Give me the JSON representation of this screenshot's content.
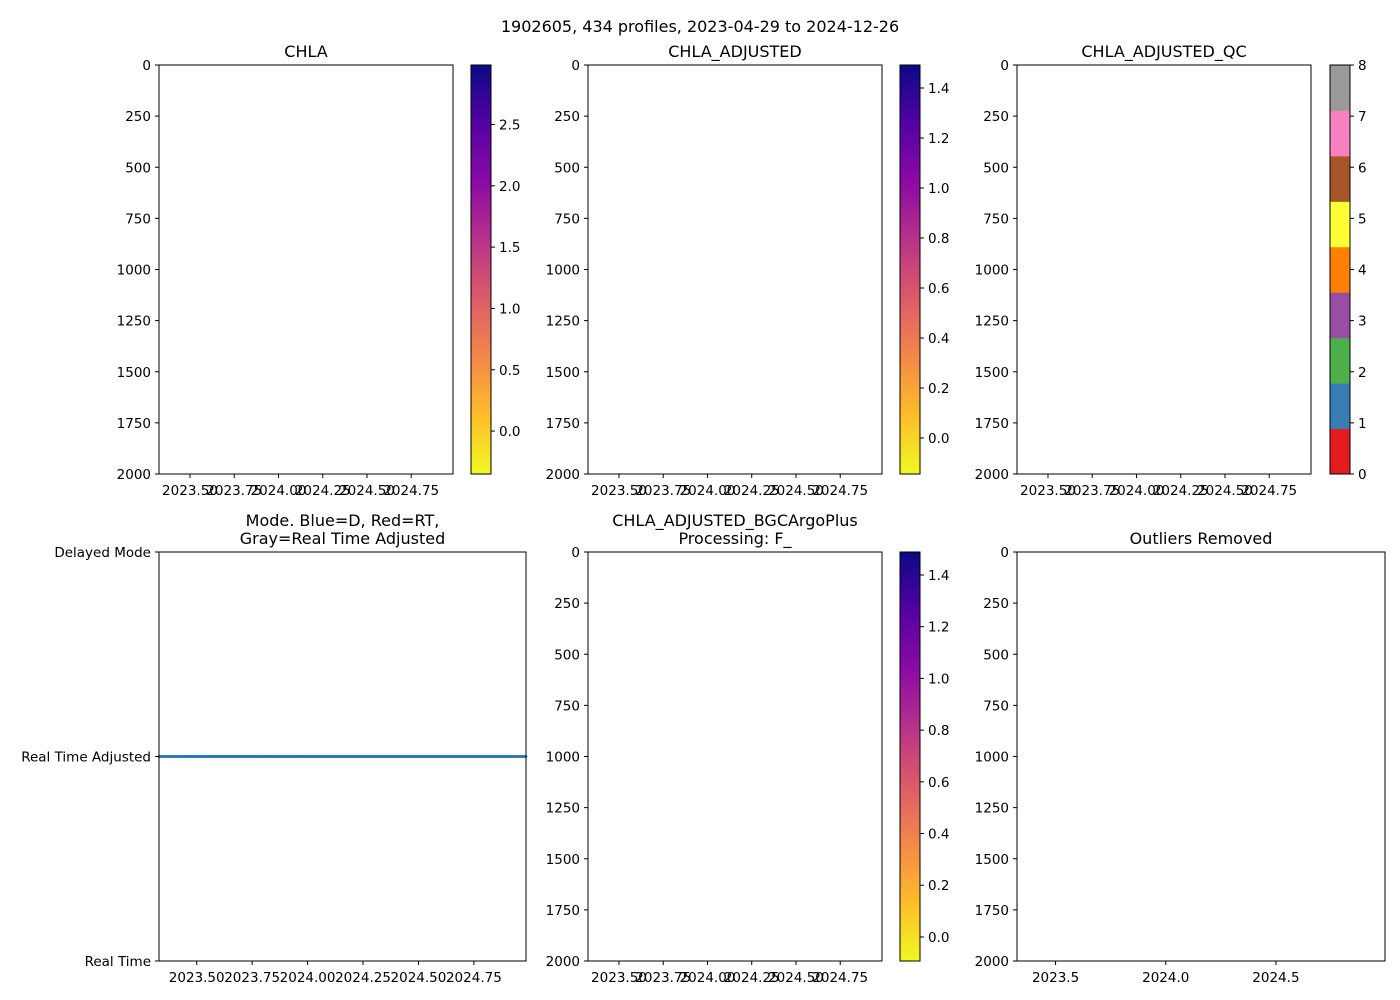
{
  "figure": {
    "suptitle": "1902605, 434 profiles, 2023-04-29 to 2024-12-26"
  },
  "chart_data": [
    {
      "id": "chla",
      "type": "heatmap",
      "title": [
        "CHLA"
      ],
      "xlim": [
        2023.325,
        2024.986
      ],
      "ylim": [
        2000,
        0
      ],
      "xticks": [
        2023.5,
        2023.75,
        2024.0,
        2024.25,
        2024.5,
        2024.75
      ],
      "xtick_labels": [
        "2023.50",
        "2023.75",
        "2024.00",
        "2024.25",
        "2024.50",
        "2024.75"
      ],
      "yticks": [
        0,
        250,
        500,
        750,
        1000,
        1250,
        1500,
        1750,
        2000
      ],
      "yticklabels": [
        "0",
        "250",
        "500",
        "750",
        "1000",
        "1250",
        "1500",
        "1750",
        "2000"
      ],
      "colorbar": {
        "cmap": "plasma_r",
        "range": [
          -0.35,
          2.985
        ],
        "ticks": [
          0.0,
          0.5,
          1.0,
          1.5,
          2.0,
          2.5
        ],
        "labels": [
          "0.0",
          "0.5",
          "1.0",
          "1.5",
          "2.0",
          "2.5"
        ]
      },
      "values": []
    },
    {
      "id": "chla_adjusted",
      "type": "heatmap",
      "title": [
        "CHLA_ADJUSTED"
      ],
      "xlim": [
        2023.325,
        2024.986
      ],
      "ylim": [
        2000,
        0
      ],
      "xticks": [
        2023.5,
        2023.75,
        2024.0,
        2024.25,
        2024.5,
        2024.75
      ],
      "xtick_labels": [
        "2023.50",
        "2023.75",
        "2024.00",
        "2024.25",
        "2024.50",
        "2024.75"
      ],
      "yticks": [
        0,
        250,
        500,
        750,
        1000,
        1250,
        1500,
        1750,
        2000
      ],
      "yticklabels": [
        "0",
        "250",
        "500",
        "750",
        "1000",
        "1250",
        "1500",
        "1750",
        "2000"
      ],
      "colorbar": {
        "cmap": "plasma_r",
        "range": [
          -0.144,
          1.492
        ],
        "ticks": [
          0.0,
          0.2,
          0.4,
          0.6,
          0.8,
          1.0,
          1.2,
          1.4
        ],
        "labels": [
          "0.0",
          "0.2",
          "0.4",
          "0.6",
          "0.8",
          "1.0",
          "1.2",
          "1.4"
        ]
      },
      "values": []
    },
    {
      "id": "chla_adjusted_qc",
      "type": "heatmap",
      "title": [
        "CHLA_ADJUSTED_QC"
      ],
      "xlim": [
        2023.325,
        2024.986
      ],
      "ylim": [
        2000,
        0
      ],
      "xticks": [
        2023.5,
        2023.75,
        2024.0,
        2024.25,
        2024.5,
        2024.75
      ],
      "xtick_labels": [
        "2023.50",
        "2023.75",
        "2024.00",
        "2024.25",
        "2024.50",
        "2024.75"
      ],
      "yticks": [
        0,
        250,
        500,
        750,
        1000,
        1250,
        1500,
        1750,
        2000
      ],
      "yticklabels": [
        "0",
        "250",
        "500",
        "750",
        "1000",
        "1250",
        "1500",
        "1750",
        "2000"
      ],
      "colorbar": {
        "cmap": "Set1",
        "range": [
          0,
          8
        ],
        "ticks": [
          0,
          1,
          2,
          3,
          4,
          5,
          6,
          7,
          8
        ],
        "labels": [
          "0",
          "1",
          "2",
          "3",
          "4",
          "5",
          "6",
          "7",
          "8"
        ],
        "colors": [
          "#e41a1c",
          "#377eb8",
          "#4daf4a",
          "#984ea3",
          "#ff7f00",
          "#ffff33",
          "#a65628",
          "#f781bf",
          "#999999"
        ]
      },
      "values": []
    },
    {
      "id": "mode",
      "type": "scatter",
      "title": [
        "Mode. Blue=D, Red=RT,",
        "Gray=Real Time Adjusted"
      ],
      "xlim": [
        2023.33,
        2024.985
      ],
      "ylim": [
        0,
        2
      ],
      "xticks": [
        2023.5,
        2023.75,
        2024.0,
        2024.25,
        2024.5,
        2024.75
      ],
      "xtick_labels": [
        "2023.50",
        "2023.75",
        "2024.00",
        "2024.25",
        "2024.50",
        "2024.75"
      ],
      "yticks": [
        2,
        1,
        0
      ],
      "yticklabels": [
        "Delayed Mode",
        "Real Time Adjusted",
        "Real Time"
      ],
      "series": [
        {
          "name": "Real Time Adjusted",
          "color": "#1f77b4",
          "y": 1,
          "count": 434,
          "x_start": 2023.33,
          "x_end": 2024.985
        }
      ]
    },
    {
      "id": "chla_bgcargoplus",
      "type": "heatmap",
      "title": [
        "CHLA_ADJUSTED_BGCArgoPlus",
        "Processing: F_"
      ],
      "xlim": [
        2023.325,
        2024.986
      ],
      "ylim": [
        2000,
        0
      ],
      "xticks": [
        2023.5,
        2023.75,
        2024.0,
        2024.25,
        2024.5,
        2024.75
      ],
      "xtick_labels": [
        "2023.50",
        "2023.75",
        "2024.00",
        "2024.25",
        "2024.50",
        "2024.75"
      ],
      "yticks": [
        0,
        250,
        500,
        750,
        1000,
        1250,
        1500,
        1750,
        2000
      ],
      "yticklabels": [
        "0",
        "250",
        "500",
        "750",
        "1000",
        "1250",
        "1500",
        "1750",
        "2000"
      ],
      "colorbar": {
        "cmap": "plasma_r",
        "range": [
          -0.093,
          1.489
        ],
        "ticks": [
          0.0,
          0.2,
          0.4,
          0.6,
          0.8,
          1.0,
          1.2,
          1.4
        ],
        "labels": [
          "0.0",
          "0.2",
          "0.4",
          "0.6",
          "0.8",
          "1.0",
          "1.2",
          "1.4"
        ]
      },
      "values": []
    },
    {
      "id": "outliers",
      "type": "scatter",
      "title": [
        "Outliers Removed"
      ],
      "xlim": [
        2023.325,
        2024.995
      ],
      "ylim": [
        2000,
        0
      ],
      "xticks": [
        2023.5,
        2024.0,
        2024.5
      ],
      "xtick_labels": [
        "2023.5",
        "2024.0",
        "2024.5"
      ],
      "yticks": [
        0,
        250,
        500,
        750,
        1000,
        1250,
        1500,
        1750,
        2000
      ],
      "yticklabels": [
        "0",
        "250",
        "500",
        "750",
        "1000",
        "1250",
        "1500",
        "1750",
        "2000"
      ],
      "series": []
    }
  ]
}
